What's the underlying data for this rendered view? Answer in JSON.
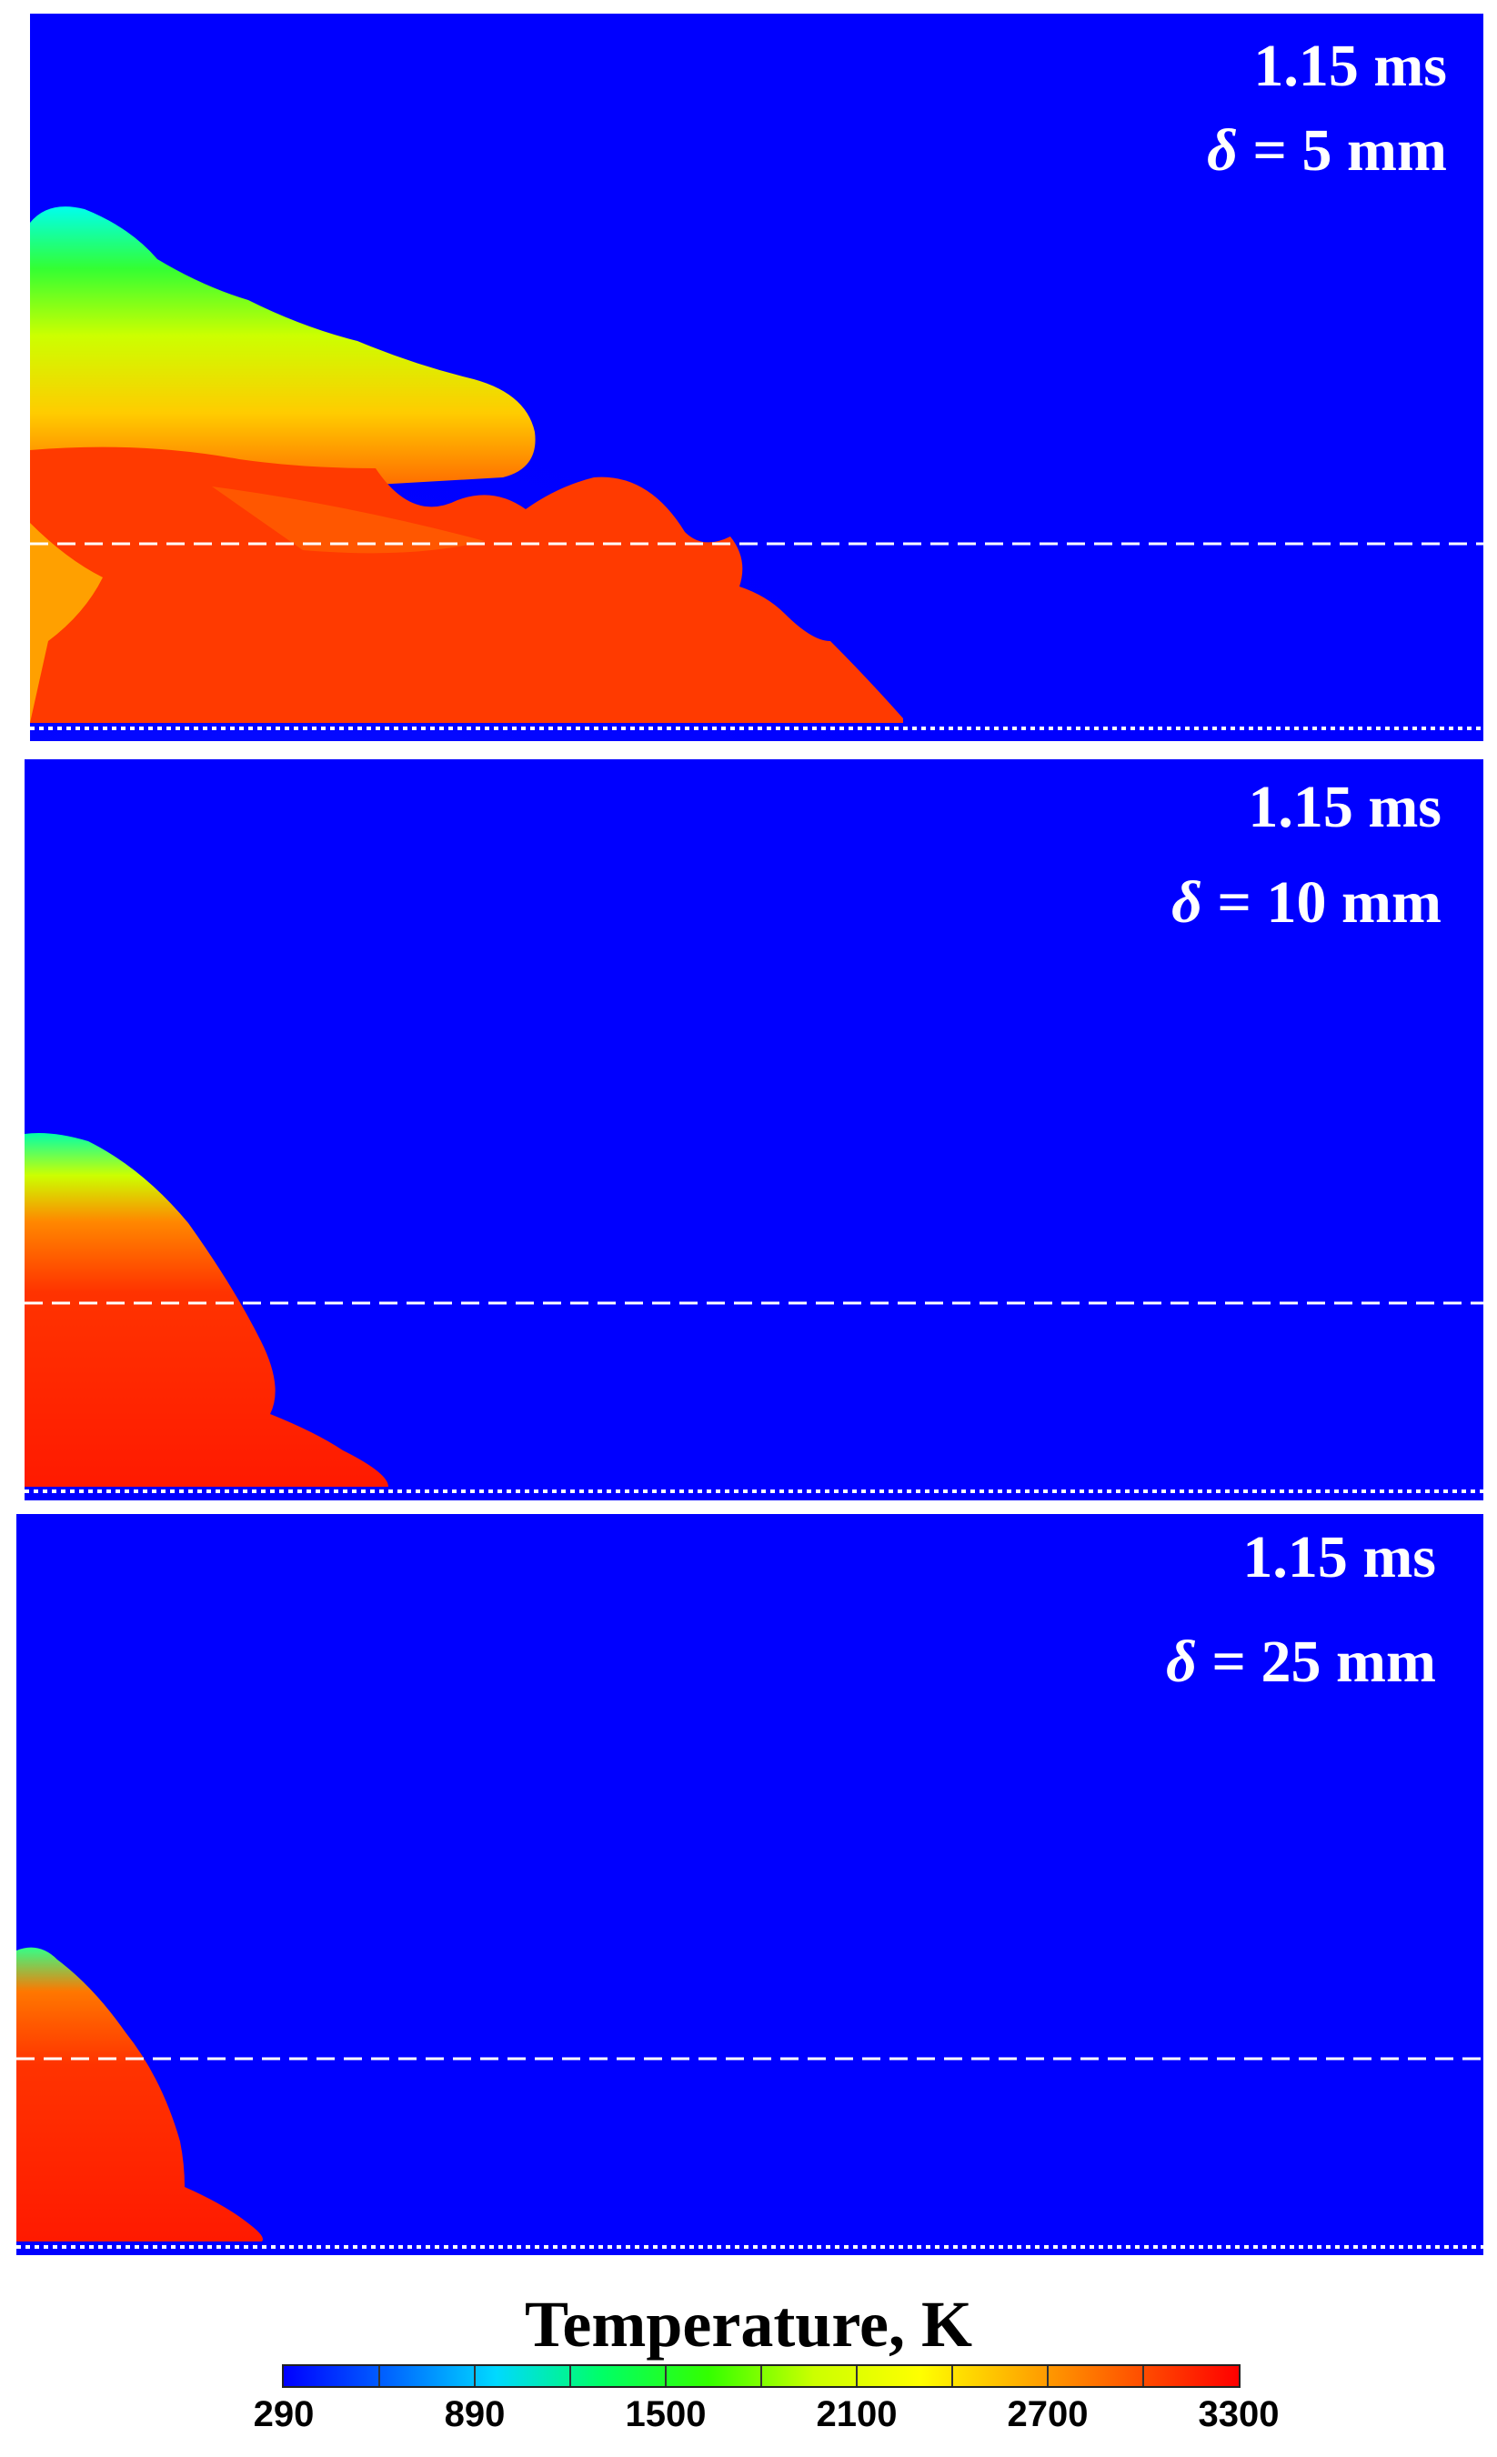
{
  "panels": [
    {
      "time_label": "1.15 ms",
      "delta_symbol": "δ",
      "delta_value": "= 5 mm"
    },
    {
      "time_label": "1.15 ms",
      "delta_symbol": "δ",
      "delta_value": "= 10 mm"
    },
    {
      "time_label": "1.15 ms",
      "delta_symbol": "δ",
      "delta_value": "= 25 mm"
    }
  ],
  "legend": {
    "title": "Temperature, K",
    "ticks": [
      "290",
      "890",
      "1500",
      "2100",
      "2700",
      "3300"
    ],
    "min": 290,
    "max": 3300,
    "colormap": [
      "#0000ff",
      "#0066ff",
      "#00d9ff",
      "#00ff66",
      "#33ff00",
      "#ccff00",
      "#ffff00",
      "#ffaa00",
      "#ff5500",
      "#ff0000"
    ]
  },
  "colors": {
    "background_field": "#0000ff",
    "hot_gas": "#ff2a00",
    "dashed_line": "#ffffff"
  }
}
